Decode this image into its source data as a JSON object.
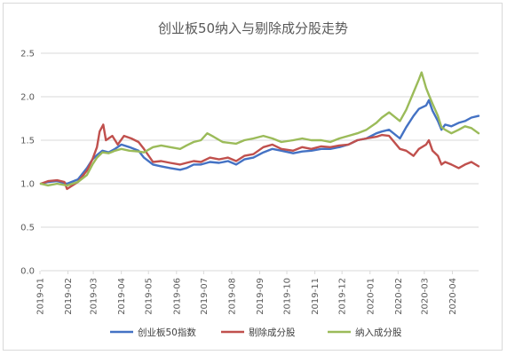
{
  "chart_data": {
    "type": "line",
    "title": "创业板50纳入与剔除成分股走势",
    "xlabel": "",
    "ylabel": "",
    "ylim": [
      0,
      2.5
    ],
    "yticks": [
      "0.0",
      "0.5",
      "1.0",
      "1.5",
      "2.0",
      "2.5"
    ],
    "x_labels": [
      "2019-01",
      "2019-02",
      "2019-03",
      "2019-04",
      "2019-05",
      "2019-06",
      "2019-07",
      "2019-08",
      "2019-09",
      "2019-10",
      "2019-11",
      "2019-12",
      "2020-01",
      "2020-02",
      "2020-03",
      "2020-04"
    ],
    "x_range": [
      "2019-01-02",
      "2020-04-30"
    ],
    "grid": "horizontal",
    "legend_position": "bottom",
    "series": [
      {
        "name": "创业板50指数",
        "color": "#4472c4",
        "points": [
          [
            "2019-01-02",
            1.0
          ],
          [
            "2019-01-10",
            1.02
          ],
          [
            "2019-01-20",
            1.03
          ],
          [
            "2019-01-31",
            1.0
          ],
          [
            "2019-02-12",
            1.05
          ],
          [
            "2019-02-22",
            1.18
          ],
          [
            "2019-02-28",
            1.28
          ],
          [
            "2019-03-05",
            1.33
          ],
          [
            "2019-03-11",
            1.38
          ],
          [
            "2019-03-18",
            1.36
          ],
          [
            "2019-03-25",
            1.4
          ],
          [
            "2019-04-01",
            1.45
          ],
          [
            "2019-04-10",
            1.42
          ],
          [
            "2019-04-20",
            1.38
          ],
          [
            "2019-04-26",
            1.3
          ],
          [
            "2019-05-06",
            1.22
          ],
          [
            "2019-05-15",
            1.2
          ],
          [
            "2019-05-25",
            1.18
          ],
          [
            "2019-06-05",
            1.16
          ],
          [
            "2019-06-12",
            1.18
          ],
          [
            "2019-06-20",
            1.22
          ],
          [
            "2019-06-28",
            1.22
          ],
          [
            "2019-07-08",
            1.25
          ],
          [
            "2019-07-18",
            1.24
          ],
          [
            "2019-07-28",
            1.26
          ],
          [
            "2019-08-06",
            1.22
          ],
          [
            "2019-08-15",
            1.28
          ],
          [
            "2019-08-25",
            1.3
          ],
          [
            "2019-09-05",
            1.36
          ],
          [
            "2019-09-15",
            1.4
          ],
          [
            "2019-09-25",
            1.38
          ],
          [
            "2019-10-08",
            1.35
          ],
          [
            "2019-10-18",
            1.37
          ],
          [
            "2019-10-28",
            1.38
          ],
          [
            "2019-11-08",
            1.4
          ],
          [
            "2019-11-18",
            1.4
          ],
          [
            "2019-11-28",
            1.42
          ],
          [
            "2019-12-08",
            1.45
          ],
          [
            "2019-12-18",
            1.5
          ],
          [
            "2019-12-28",
            1.52
          ],
          [
            "2020-01-08",
            1.58
          ],
          [
            "2020-01-14",
            1.6
          ],
          [
            "2020-01-22",
            1.62
          ],
          [
            "2020-02-03",
            1.52
          ],
          [
            "2020-02-10",
            1.65
          ],
          [
            "2020-02-18",
            1.78
          ],
          [
            "2020-02-24",
            1.86
          ],
          [
            "2020-03-03",
            1.9
          ],
          [
            "2020-03-06",
            1.96
          ],
          [
            "2020-03-10",
            1.84
          ],
          [
            "2020-03-16",
            1.72
          ],
          [
            "2020-03-20",
            1.62
          ],
          [
            "2020-03-24",
            1.68
          ],
          [
            "2020-03-31",
            1.66
          ],
          [
            "2020-04-08",
            1.7
          ],
          [
            "2020-04-15",
            1.72
          ],
          [
            "2020-04-22",
            1.76
          ],
          [
            "2020-04-30",
            1.78
          ]
        ]
      },
      {
        "name": "剔除成分股",
        "color": "#c0504d",
        "points": [
          [
            "2019-01-02",
            1.0
          ],
          [
            "2019-01-10",
            1.03
          ],
          [
            "2019-01-20",
            1.04
          ],
          [
            "2019-01-28",
            1.02
          ],
          [
            "2019-01-31",
            0.94
          ],
          [
            "2019-02-12",
            1.02
          ],
          [
            "2019-02-22",
            1.15
          ],
          [
            "2019-02-28",
            1.28
          ],
          [
            "2019-03-05",
            1.42
          ],
          [
            "2019-03-08",
            1.6
          ],
          [
            "2019-03-12",
            1.68
          ],
          [
            "2019-03-15",
            1.5
          ],
          [
            "2019-03-22",
            1.55
          ],
          [
            "2019-03-28",
            1.45
          ],
          [
            "2019-04-04",
            1.55
          ],
          [
            "2019-04-12",
            1.52
          ],
          [
            "2019-04-20",
            1.48
          ],
          [
            "2019-04-26",
            1.4
          ],
          [
            "2019-05-06",
            1.25
          ],
          [
            "2019-05-15",
            1.26
          ],
          [
            "2019-05-25",
            1.24
          ],
          [
            "2019-06-05",
            1.22
          ],
          [
            "2019-06-12",
            1.24
          ],
          [
            "2019-06-20",
            1.26
          ],
          [
            "2019-06-28",
            1.25
          ],
          [
            "2019-07-08",
            1.3
          ],
          [
            "2019-07-18",
            1.28
          ],
          [
            "2019-07-28",
            1.3
          ],
          [
            "2019-08-06",
            1.26
          ],
          [
            "2019-08-15",
            1.32
          ],
          [
            "2019-08-25",
            1.34
          ],
          [
            "2019-09-05",
            1.42
          ],
          [
            "2019-09-15",
            1.45
          ],
          [
            "2019-09-25",
            1.4
          ],
          [
            "2019-10-08",
            1.38
          ],
          [
            "2019-10-18",
            1.42
          ],
          [
            "2019-10-28",
            1.4
          ],
          [
            "2019-11-08",
            1.43
          ],
          [
            "2019-11-18",
            1.42
          ],
          [
            "2019-11-28",
            1.44
          ],
          [
            "2019-12-08",
            1.45
          ],
          [
            "2019-12-18",
            1.5
          ],
          [
            "2019-12-28",
            1.52
          ],
          [
            "2020-01-08",
            1.54
          ],
          [
            "2020-01-14",
            1.56
          ],
          [
            "2020-01-22",
            1.55
          ],
          [
            "2020-02-03",
            1.4
          ],
          [
            "2020-02-10",
            1.38
          ],
          [
            "2020-02-18",
            1.32
          ],
          [
            "2020-02-24",
            1.4
          ],
          [
            "2020-03-03",
            1.45
          ],
          [
            "2020-03-06",
            1.5
          ],
          [
            "2020-03-10",
            1.38
          ],
          [
            "2020-03-16",
            1.32
          ],
          [
            "2020-03-20",
            1.22
          ],
          [
            "2020-03-24",
            1.25
          ],
          [
            "2020-03-31",
            1.22
          ],
          [
            "2020-04-08",
            1.18
          ],
          [
            "2020-04-15",
            1.22
          ],
          [
            "2020-04-22",
            1.25
          ],
          [
            "2020-04-30",
            1.2
          ]
        ]
      },
      {
        "name": "纳入成分股",
        "color": "#9bbb59",
        "points": [
          [
            "2019-01-02",
            1.0
          ],
          [
            "2019-01-10",
            0.98
          ],
          [
            "2019-01-20",
            1.0
          ],
          [
            "2019-01-31",
            0.98
          ],
          [
            "2019-02-12",
            1.02
          ],
          [
            "2019-02-22",
            1.1
          ],
          [
            "2019-02-28",
            1.22
          ],
          [
            "2019-03-05",
            1.3
          ],
          [
            "2019-03-11",
            1.36
          ],
          [
            "2019-03-18",
            1.35
          ],
          [
            "2019-03-25",
            1.38
          ],
          [
            "2019-04-01",
            1.4
          ],
          [
            "2019-04-10",
            1.38
          ],
          [
            "2019-04-20",
            1.37
          ],
          [
            "2019-04-26",
            1.36
          ],
          [
            "2019-05-06",
            1.42
          ],
          [
            "2019-05-15",
            1.44
          ],
          [
            "2019-05-25",
            1.42
          ],
          [
            "2019-06-05",
            1.4
          ],
          [
            "2019-06-12",
            1.44
          ],
          [
            "2019-06-20",
            1.48
          ],
          [
            "2019-06-28",
            1.5
          ],
          [
            "2019-07-05",
            1.58
          ],
          [
            "2019-07-12",
            1.54
          ],
          [
            "2019-07-22",
            1.48
          ],
          [
            "2019-08-06",
            1.46
          ],
          [
            "2019-08-15",
            1.5
          ],
          [
            "2019-08-25",
            1.52
          ],
          [
            "2019-09-05",
            1.55
          ],
          [
            "2019-09-15",
            1.52
          ],
          [
            "2019-09-25",
            1.48
          ],
          [
            "2019-10-08",
            1.5
          ],
          [
            "2019-10-18",
            1.52
          ],
          [
            "2019-10-28",
            1.5
          ],
          [
            "2019-11-08",
            1.5
          ],
          [
            "2019-11-18",
            1.48
          ],
          [
            "2019-11-28",
            1.52
          ],
          [
            "2019-12-08",
            1.55
          ],
          [
            "2019-12-18",
            1.58
          ],
          [
            "2019-12-28",
            1.62
          ],
          [
            "2020-01-08",
            1.7
          ],
          [
            "2020-01-14",
            1.76
          ],
          [
            "2020-01-22",
            1.82
          ],
          [
            "2020-02-03",
            1.72
          ],
          [
            "2020-02-10",
            1.85
          ],
          [
            "2020-02-18",
            2.05
          ],
          [
            "2020-02-24",
            2.2
          ],
          [
            "2020-02-27",
            2.28
          ],
          [
            "2020-03-03",
            2.1
          ],
          [
            "2020-03-06",
            2.02
          ],
          [
            "2020-03-10",
            1.92
          ],
          [
            "2020-03-16",
            1.78
          ],
          [
            "2020-03-20",
            1.65
          ],
          [
            "2020-03-24",
            1.62
          ],
          [
            "2020-03-31",
            1.58
          ],
          [
            "2020-04-08",
            1.62
          ],
          [
            "2020-04-15",
            1.66
          ],
          [
            "2020-04-22",
            1.64
          ],
          [
            "2020-04-30",
            1.58
          ]
        ]
      }
    ]
  }
}
